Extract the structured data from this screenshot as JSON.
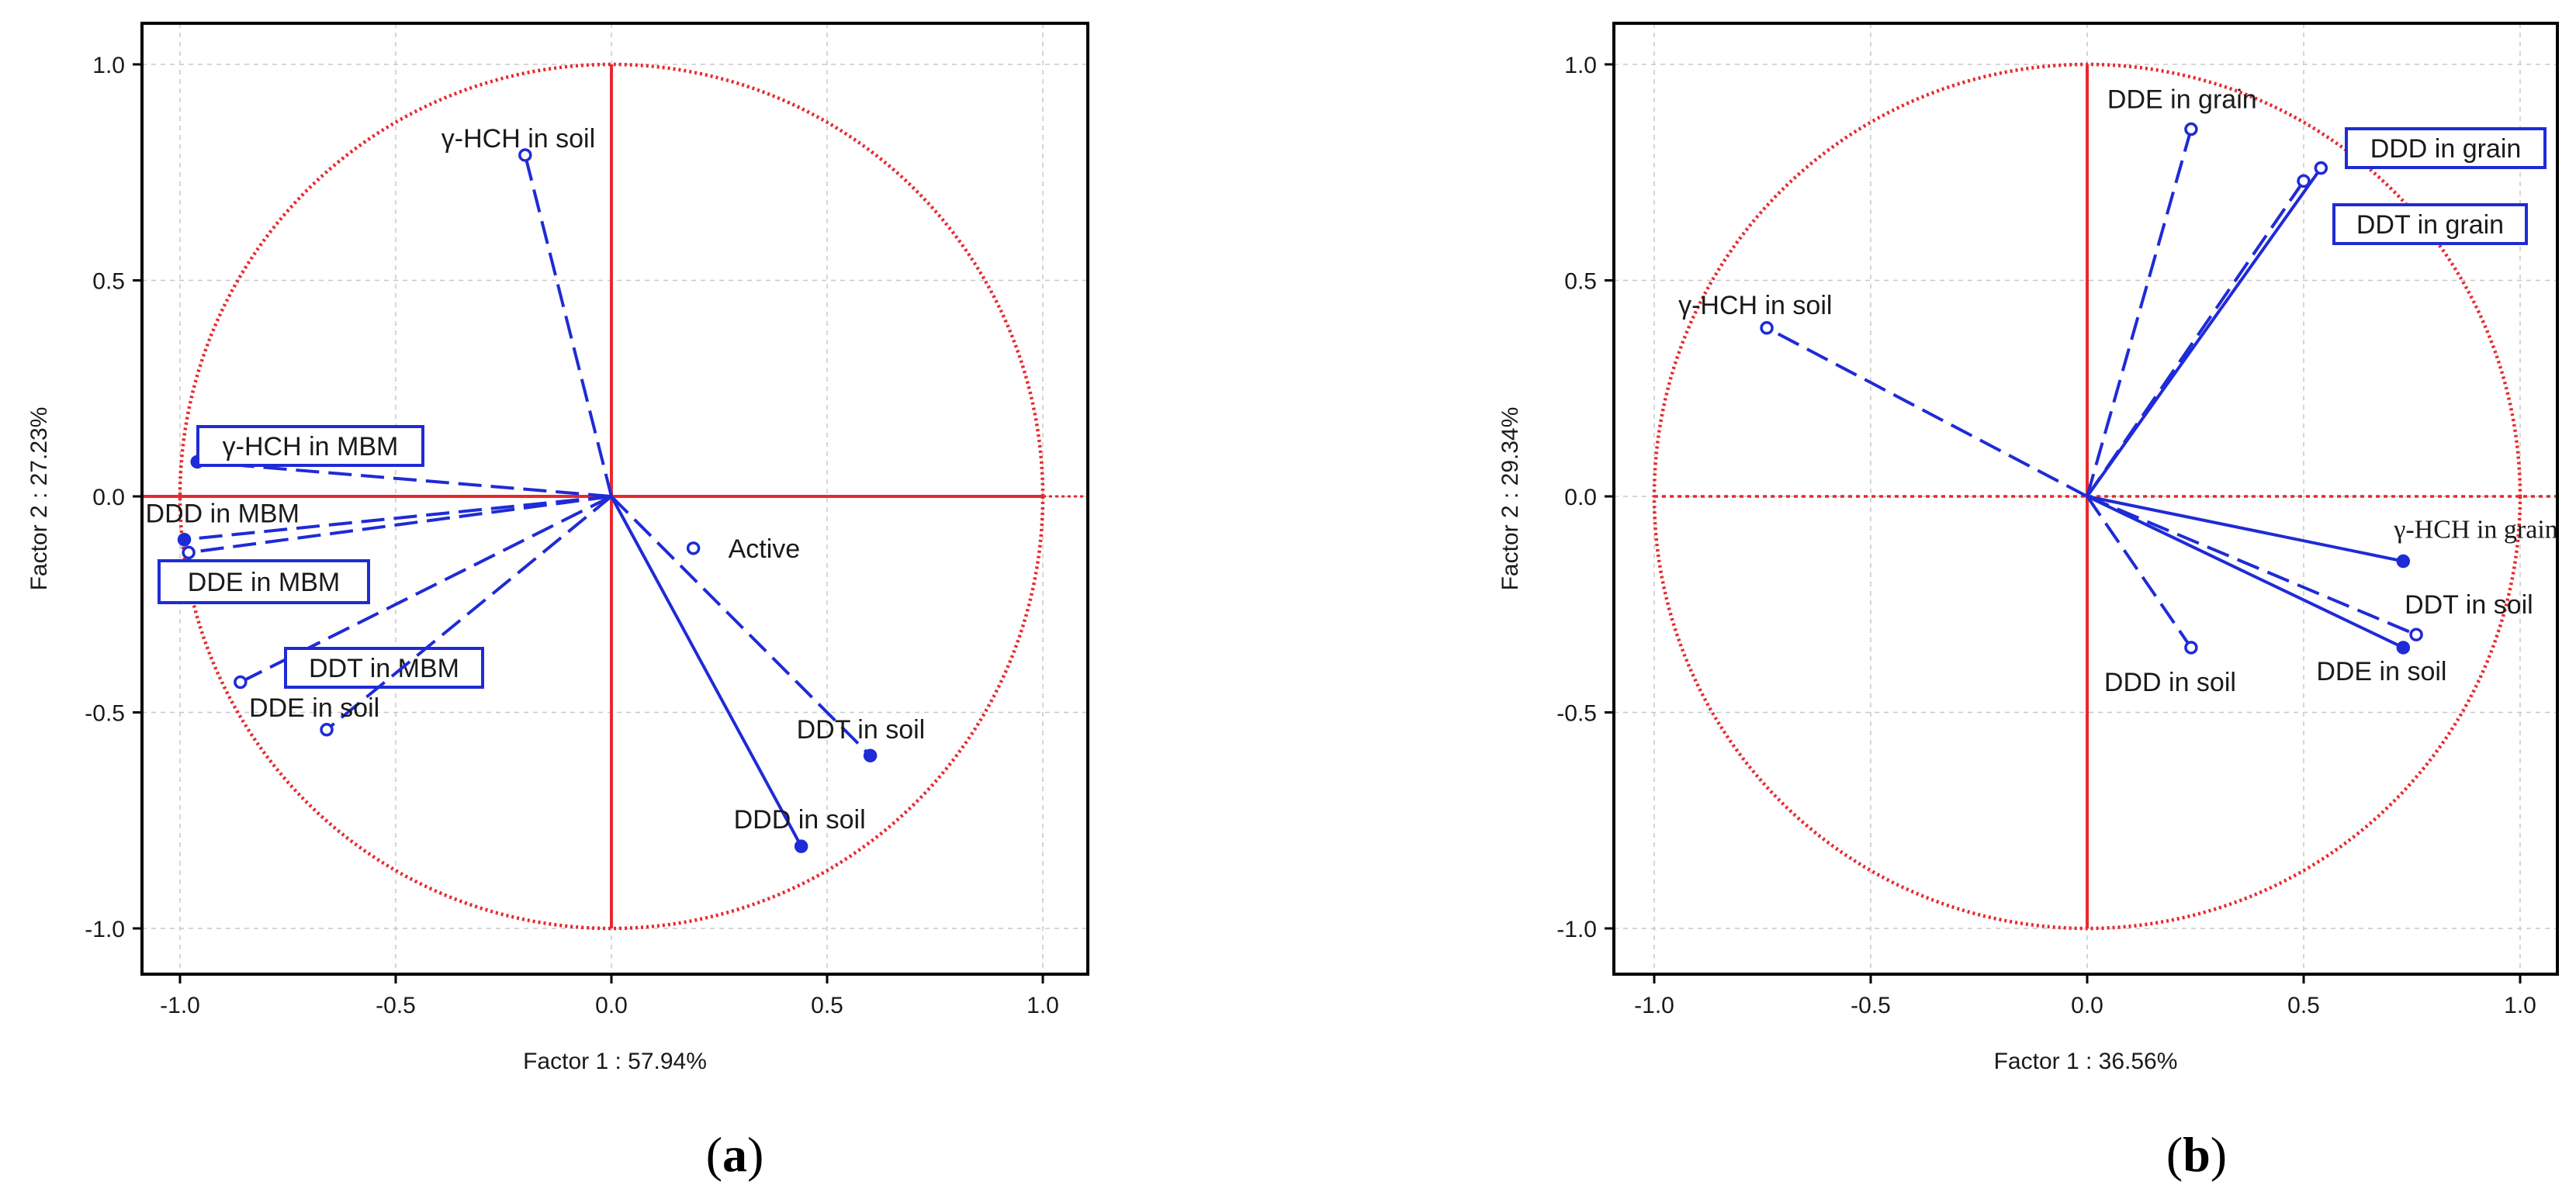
{
  "figure": {
    "panels": [
      {
        "letter": "a",
        "open": "(",
        "close": ")"
      },
      {
        "letter": "b",
        "open": "(",
        "close": ")"
      }
    ]
  },
  "colors": {
    "circle": "#e8282e",
    "axes": "#e8282e",
    "vectors": "#1f2bd6",
    "box": "#1f2bd6",
    "grid": "#c8c8c8"
  },
  "chart_data": [
    {
      "type": "scatter",
      "title": "",
      "xlabel": "Factor 1 : 57.94%",
      "ylabel": "Factor 2 : 27.23%",
      "xlim": [
        -1.1,
        1.1
      ],
      "ylim": [
        -1.1,
        1.1
      ],
      "xticks": [
        -1.0,
        -0.5,
        0.0,
        0.5,
        1.0
      ],
      "yticks": [
        -1.0,
        -0.5,
        0.0,
        0.5,
        1.0
      ],
      "xtick_labels": [
        "-1.0",
        "-0.5",
        "0.0",
        "0.5",
        "1.0"
      ],
      "ytick_labels": [
        "-1.0",
        "-0.5",
        "0.0",
        "0.5",
        "1.0"
      ],
      "grid": true,
      "unit_circle": true,
      "points": [
        {
          "label": "γ-HCH in soil",
          "x": -0.2,
          "y": 0.79,
          "marker": "open",
          "line": "dash",
          "boxed": false
        },
        {
          "label": "γ-HCH in MBM",
          "x": -0.96,
          "y": 0.08,
          "marker": "filled",
          "line": "dash",
          "boxed": true
        },
        {
          "label": "DDD in MBM",
          "x": -0.99,
          "y": -0.1,
          "marker": "filled",
          "line": "dash",
          "boxed": false
        },
        {
          "label": "DDE in MBM",
          "x": -0.98,
          "y": -0.13,
          "marker": "open",
          "line": "dash",
          "boxed": true
        },
        {
          "label": "DDT in MBM",
          "x": -0.86,
          "y": -0.43,
          "marker": "open",
          "line": "dash",
          "boxed": true
        },
        {
          "label": "DDE in soil",
          "x": -0.66,
          "y": -0.54,
          "marker": "open",
          "line": "dash",
          "boxed": false
        },
        {
          "label": "DDT in soil",
          "x": 0.6,
          "y": -0.6,
          "marker": "filled",
          "line": "dash",
          "boxed": false
        },
        {
          "label": "DDD in soil",
          "x": 0.44,
          "y": -0.81,
          "marker": "filled",
          "line": "solid",
          "boxed": false
        },
        {
          "label": "Active",
          "x": 0.19,
          "y": -0.12,
          "marker": "open",
          "line": "none",
          "boxed": false
        }
      ]
    },
    {
      "type": "scatter",
      "title": "",
      "xlabel": "Factor 1 : 36.56%",
      "ylabel": "Factor 2 : 29.34%",
      "xlim": [
        -1.1,
        1.1
      ],
      "ylim": [
        -1.1,
        1.1
      ],
      "xticks": [
        -1.0,
        -0.5,
        0.0,
        0.5,
        1.0
      ],
      "yticks": [
        -1.0,
        -0.5,
        0.0,
        0.5,
        1.0
      ],
      "xtick_labels": [
        "-1.0",
        "-0.5",
        "0.0",
        "0.5",
        "1.0"
      ],
      "ytick_labels": [
        "-1.0",
        "-0.5",
        "0.0",
        "0.5",
        "1.0"
      ],
      "grid": true,
      "unit_circle": true,
      "points": [
        {
          "label": "DDE in grain",
          "x": 0.24,
          "y": 0.85,
          "marker": "open",
          "line": "dash",
          "boxed": false
        },
        {
          "label": "DDD in grain",
          "x": 0.54,
          "y": 0.76,
          "marker": "open",
          "line": "solid",
          "boxed": true
        },
        {
          "label": "DDT in grain",
          "x": 0.5,
          "y": 0.73,
          "marker": "open",
          "line": "dash",
          "boxed": true
        },
        {
          "label": "γ-HCH in soil",
          "x": -0.74,
          "y": 0.39,
          "marker": "open",
          "line": "dash",
          "boxed": false
        },
        {
          "label": "γ-HCH in grain",
          "x": 0.73,
          "y": -0.15,
          "marker": "filled",
          "line": "solid",
          "boxed": false,
          "serif": true
        },
        {
          "label": "DDT in soil",
          "x": 0.76,
          "y": -0.32,
          "marker": "open",
          "line": "dash",
          "boxed": false
        },
        {
          "label": "DDE in soil",
          "x": 0.73,
          "y": -0.35,
          "marker": "filled",
          "line": "solid",
          "boxed": false
        },
        {
          "label": "DDD in soil",
          "x": 0.24,
          "y": -0.35,
          "marker": "open",
          "line": "dash",
          "boxed": false
        }
      ]
    }
  ]
}
